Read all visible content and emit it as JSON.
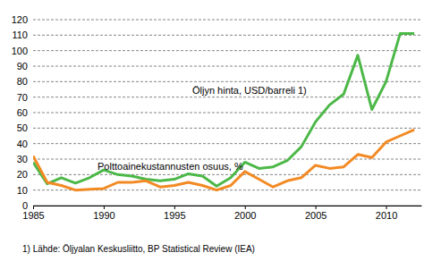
{
  "chart_data": {
    "type": "line",
    "x": [
      1985,
      1986,
      1987,
      1988,
      1989,
      1990,
      1991,
      1992,
      1993,
      1994,
      1995,
      1996,
      1997,
      1998,
      1999,
      2000,
      2001,
      2002,
      2003,
      2004,
      2005,
      2006,
      2007,
      2008,
      2009,
      2010,
      2011,
      2012
    ],
    "series": [
      {
        "name": "Öljyn hinta, USD/barreli 1)",
        "color": "#4cb848",
        "values": [
          28,
          14,
          18,
          14.5,
          18,
          23,
          20,
          19,
          17,
          16,
          17,
          20.5,
          19,
          12.5,
          18,
          28,
          24,
          25,
          29,
          38,
          54,
          65,
          72,
          97,
          62,
          80,
          111,
          111
        ]
      },
      {
        "name": "Polttoainekustannusten osuus, %",
        "color": "#f28a24",
        "values": [
          32,
          15,
          13,
          10,
          10.5,
          11,
          15,
          15,
          16,
          12,
          13,
          15,
          13,
          10,
          13,
          22,
          17,
          12,
          16,
          18,
          26,
          24,
          25,
          33,
          31,
          41,
          45,
          49
        ]
      }
    ],
    "xlim": [
      1985,
      2012.5
    ],
    "xticks": [
      1985,
      1990,
      1995,
      2000,
      2005,
      2010
    ],
    "ylim": [
      0,
      120
    ],
    "yticks": [
      0,
      10,
      20,
      30,
      40,
      50,
      60,
      70,
      80,
      90,
      100,
      110,
      120
    ],
    "grid": true,
    "note": "1) Lähde: Öljyalan Keskusliitto, BP Statistical Review (IEA)"
  }
}
